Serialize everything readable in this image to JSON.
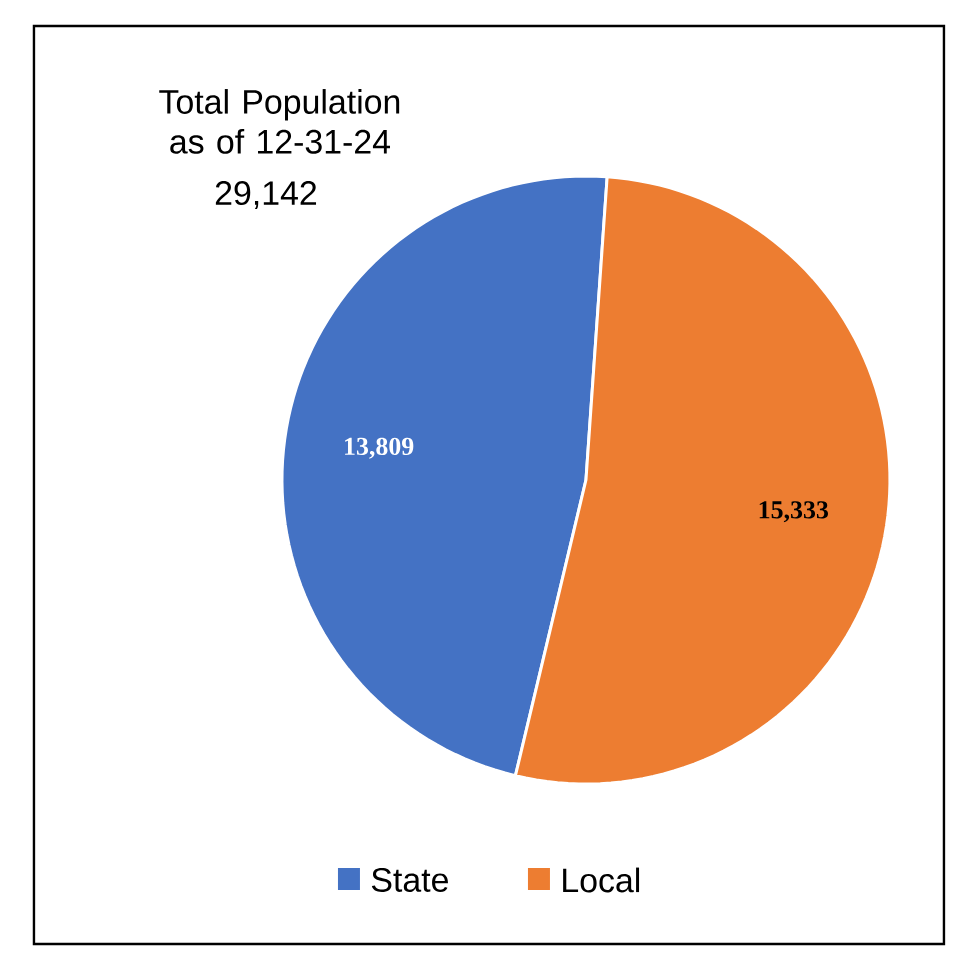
{
  "chart_data": {
    "type": "pie",
    "title": "Total Population as of 12-31-24",
    "subtitle": "29,142",
    "categories": [
      "State",
      "Local"
    ],
    "values": [
      13809,
      15333
    ],
    "colors": [
      "#4472c4",
      "#ed7d31"
    ],
    "value_labels": [
      "13,809",
      "15,333"
    ],
    "legend": "bottom"
  }
}
